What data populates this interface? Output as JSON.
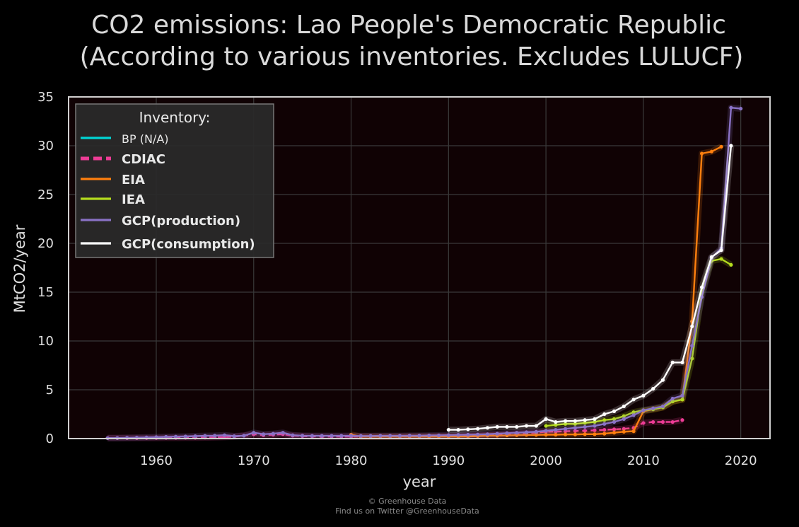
{
  "title_line1": "CO2 emissions: Lao People's Democratic Republic",
  "title_line2": "(According to various inventories. Excludes LULUCF)",
  "footer": {
    "line1": "© Greenhouse Data",
    "line2": "Find us on Twitter @GreenhouseData"
  },
  "chart_data": {
    "type": "line",
    "title": "CO2 emissions: Lao People's Democratic Republic (According to various inventories. Excludes LULUCF)",
    "xlabel": "year",
    "ylabel": "MtCO2/year",
    "xlim": [
      1951,
      2023
    ],
    "ylim": [
      0,
      35
    ],
    "xticks": [
      1960,
      1970,
      1980,
      1990,
      2000,
      2010,
      2020
    ],
    "yticks": [
      0,
      5,
      10,
      15,
      20,
      25,
      30,
      35
    ],
    "grid": true,
    "background": "#100204",
    "legend": {
      "title": "Inventory:",
      "placement": "top-left",
      "entries": [
        "BP (N/A)",
        "CDIAC",
        "EIA",
        "IEA",
        "GCP(production)",
        "GCP(consumption)"
      ]
    },
    "series": [
      {
        "name": "BP (N/A)",
        "color": "#00d5d5",
        "style": "solid",
        "x": [],
        "y": []
      },
      {
        "name": "CDIAC",
        "color": "#ee3c96",
        "style": "dashed",
        "x": [
          1955,
          1956,
          1957,
          1958,
          1959,
          1960,
          1961,
          1962,
          1963,
          1964,
          1965,
          1966,
          1967,
          1968,
          1969,
          1970,
          1971,
          1972,
          1973,
          1974,
          1975,
          1976,
          1977,
          1978,
          1979,
          1980,
          1981,
          1982,
          1983,
          1984,
          1985,
          1986,
          1987,
          1988,
          1989,
          1990,
          1991,
          1992,
          1993,
          1994,
          1995,
          1996,
          1997,
          1998,
          1999,
          2000,
          2001,
          2002,
          2003,
          2004,
          2005,
          2006,
          2007,
          2008,
          2009,
          2010,
          2011,
          2012,
          2013,
          2014
        ],
        "y": [
          0.05,
          0.05,
          0.05,
          0.05,
          0.06,
          0.06,
          0.07,
          0.07,
          0.08,
          0.08,
          0.1,
          0.12,
          0.15,
          0.2,
          0.3,
          0.45,
          0.35,
          0.4,
          0.45,
          0.3,
          0.25,
          0.22,
          0.2,
          0.2,
          0.2,
          0.2,
          0.2,
          0.2,
          0.2,
          0.2,
          0.2,
          0.21,
          0.22,
          0.22,
          0.23,
          0.23,
          0.25,
          0.27,
          0.3,
          0.35,
          0.4,
          0.45,
          0.5,
          0.55,
          0.6,
          0.7,
          0.72,
          0.75,
          0.78,
          0.8,
          0.85,
          0.9,
          0.95,
          1.0,
          1.1,
          1.6,
          1.7,
          1.7,
          1.7,
          1.9
        ]
      },
      {
        "name": "EIA",
        "color": "#ff7f0e",
        "style": "solid",
        "x": [
          1980,
          1981,
          1982,
          1983,
          1984,
          1985,
          1986,
          1987,
          1988,
          1989,
          1990,
          1991,
          1992,
          1993,
          1994,
          1995,
          1996,
          1997,
          1998,
          1999,
          2000,
          2001,
          2002,
          2003,
          2004,
          2005,
          2006,
          2007,
          2008,
          2009,
          2010,
          2011,
          2012,
          2013,
          2014,
          2015,
          2016,
          2017,
          2018
        ],
        "y": [
          0.4,
          0.2,
          0.2,
          0.2,
          0.2,
          0.2,
          0.2,
          0.2,
          0.2,
          0.2,
          0.2,
          0.2,
          0.22,
          0.25,
          0.3,
          0.3,
          0.32,
          0.35,
          0.38,
          0.38,
          0.4,
          0.4,
          0.42,
          0.42,
          0.45,
          0.45,
          0.5,
          0.6,
          0.7,
          0.75,
          2.8,
          3.0,
          3.2,
          3.8,
          4.0,
          12.0,
          29.2,
          29.4,
          29.9
        ]
      },
      {
        "name": "IEA",
        "color": "#b4dc1e",
        "style": "solid",
        "x": [
          2000,
          2001,
          2002,
          2003,
          2004,
          2005,
          2006,
          2007,
          2008,
          2009,
          2010,
          2011,
          2012,
          2013,
          2014,
          2015,
          2016,
          2017,
          2018,
          2019
        ],
        "y": [
          1.3,
          1.4,
          1.5,
          1.5,
          1.6,
          1.7,
          1.9,
          2.0,
          2.3,
          2.7,
          2.9,
          3.0,
          3.2,
          3.8,
          4.0,
          8.2,
          15.0,
          18.2,
          18.4,
          17.8
        ]
      },
      {
        "name": "GCP(production)",
        "color": "#8a72c6",
        "style": "solid",
        "x": [
          1955,
          1956,
          1957,
          1958,
          1959,
          1960,
          1961,
          1962,
          1963,
          1964,
          1965,
          1966,
          1967,
          1968,
          1969,
          1970,
          1971,
          1972,
          1973,
          1974,
          1975,
          1976,
          1977,
          1978,
          1979,
          1980,
          1981,
          1982,
          1983,
          1984,
          1985,
          1986,
          1987,
          1988,
          1989,
          1990,
          1991,
          1992,
          1993,
          1994,
          1995,
          1996,
          1997,
          1998,
          1999,
          2000,
          2001,
          2002,
          2003,
          2004,
          2005,
          2006,
          2007,
          2008,
          2009,
          2010,
          2011,
          2012,
          2013,
          2014,
          2015,
          2016,
          2017,
          2018,
          2019,
          2020
        ],
        "y": [
          0.05,
          0.06,
          0.08,
          0.1,
          0.12,
          0.15,
          0.18,
          0.2,
          0.22,
          0.25,
          0.28,
          0.3,
          0.35,
          0.25,
          0.3,
          0.6,
          0.45,
          0.5,
          0.6,
          0.35,
          0.3,
          0.28,
          0.28,
          0.28,
          0.28,
          0.28,
          0.27,
          0.27,
          0.28,
          0.28,
          0.28,
          0.3,
          0.3,
          0.32,
          0.33,
          0.35,
          0.38,
          0.4,
          0.42,
          0.45,
          0.5,
          0.55,
          0.6,
          0.65,
          0.7,
          0.8,
          0.9,
          1.0,
          1.1,
          1.2,
          1.3,
          1.5,
          1.7,
          2.0,
          2.4,
          2.9,
          3.1,
          3.3,
          4.1,
          4.4,
          9.5,
          14.5,
          18.5,
          19.5,
          33.9,
          33.8
        ]
      },
      {
        "name": "GCP(consumption)",
        "color": "#ffffff",
        "style": "solid",
        "x": [
          1990,
          1991,
          1992,
          1993,
          1994,
          1995,
          1996,
          1997,
          1998,
          1999,
          2000,
          2001,
          2002,
          2003,
          2004,
          2005,
          2006,
          2007,
          2008,
          2009,
          2010,
          2011,
          2012,
          2013,
          2014,
          2015,
          2016,
          2017,
          2018,
          2019
        ],
        "y": [
          0.9,
          0.9,
          0.95,
          1.0,
          1.1,
          1.2,
          1.2,
          1.2,
          1.3,
          1.3,
          2.0,
          1.7,
          1.8,
          1.8,
          1.9,
          2.0,
          2.5,
          2.8,
          3.3,
          4.0,
          4.4,
          5.1,
          6.0,
          7.8,
          7.8,
          11.5,
          15.5,
          18.6,
          19.3,
          30.0
        ]
      }
    ]
  }
}
